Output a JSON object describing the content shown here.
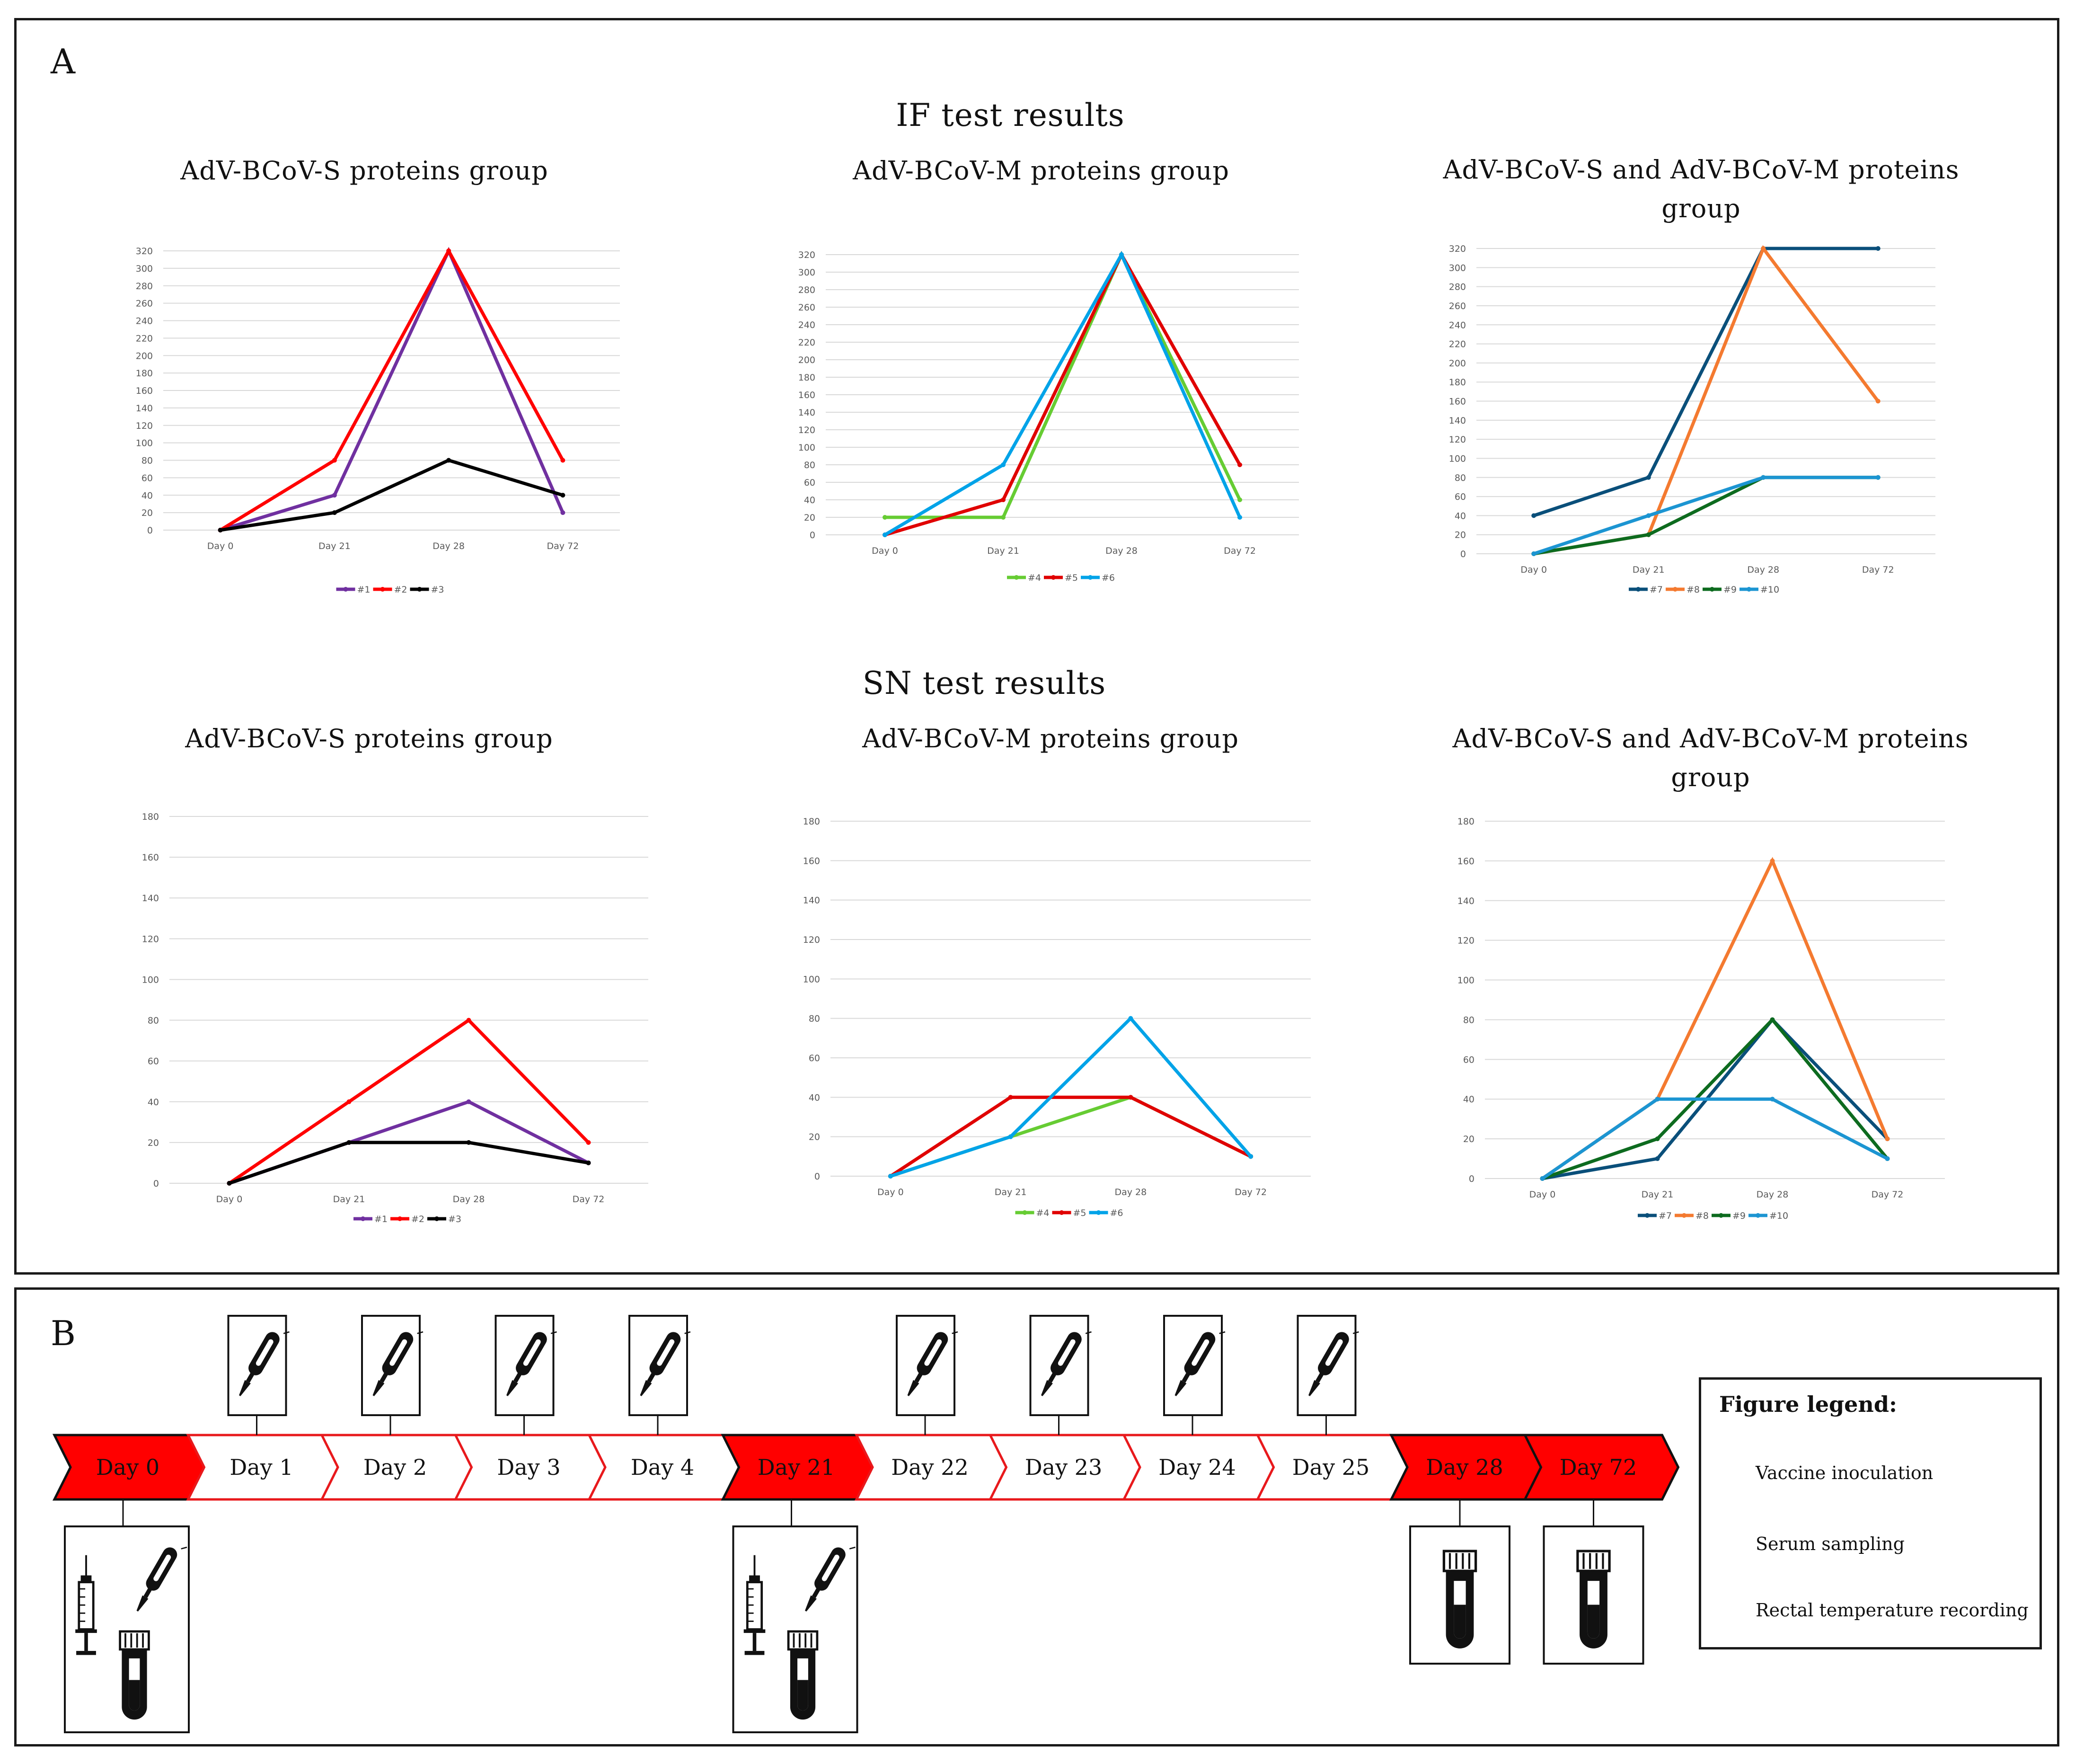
{
  "panel_a": {
    "letter": "A",
    "if_title": "IF test results",
    "sn_title": "SN test results"
  },
  "colors": {
    "#1": "#7030a0",
    "#2": "#ff0000",
    "#3": "#000000",
    "#4": "#66cc33",
    "#5": "#e00000",
    "#6": "#00a3e8",
    "#7": "#0a4f7a",
    "#8": "#f47a30",
    "#9": "#0d6b1f",
    "#10": "#1c95d2"
  },
  "chart_data": [
    {
      "type": "line",
      "id": "if_s",
      "title": "AdV-BCoV-S proteins group",
      "categories": [
        "Day 0",
        "Day 21",
        "Day 28",
        "Day 72"
      ],
      "ylim": [
        0,
        320
      ],
      "ytick_step": 20,
      "series": [
        {
          "name": "#1",
          "values": [
            0,
            40,
            320,
            20
          ]
        },
        {
          "name": "#2",
          "values": [
            0,
            80,
            320,
            80
          ]
        },
        {
          "name": "#3",
          "values": [
            0,
            20,
            80,
            40
          ]
        }
      ]
    },
    {
      "type": "line",
      "id": "if_m",
      "title": "AdV-BCoV-M proteins group",
      "categories": [
        "Day 0",
        "Day 21",
        "Day 28",
        "Day 72"
      ],
      "ylim": [
        0,
        320
      ],
      "ytick_step": 20,
      "series": [
        {
          "name": "#4",
          "values": [
            20,
            20,
            320,
            40
          ]
        },
        {
          "name": "#5",
          "values": [
            0,
            40,
            320,
            80
          ]
        },
        {
          "name": "#6",
          "values": [
            0,
            80,
            320,
            20
          ]
        }
      ]
    },
    {
      "type": "line",
      "id": "if_sm",
      "title": "AdV-BCoV-S and AdV-BCoV-M proteins group",
      "categories": [
        "Day 0",
        "Day 21",
        "Day 28",
        "Day 72"
      ],
      "ylim": [
        0,
        320
      ],
      "ytick_step": 20,
      "series": [
        {
          "name": "#7",
          "values": [
            40,
            80,
            320,
            320
          ]
        },
        {
          "name": "#8",
          "values": [
            0,
            20,
            320,
            160
          ]
        },
        {
          "name": "#9",
          "values": [
            0,
            20,
            80,
            80
          ]
        },
        {
          "name": "#10",
          "values": [
            0,
            40,
            80,
            80
          ]
        }
      ]
    },
    {
      "type": "line",
      "id": "sn_s",
      "title": "AdV-BCoV-S proteins group",
      "categories": [
        "Day 0",
        "Day 21",
        "Day 28",
        "Day 72"
      ],
      "ylim": [
        0,
        180
      ],
      "ytick_step": 20,
      "series": [
        {
          "name": "#1",
          "values": [
            0,
            20,
            40,
            10
          ]
        },
        {
          "name": "#2",
          "values": [
            0,
            40,
            80,
            20
          ]
        },
        {
          "name": "#3",
          "values": [
            0,
            20,
            20,
            10
          ]
        }
      ]
    },
    {
      "type": "line",
      "id": "sn_m",
      "title": "AdV-BCoV-M proteins group",
      "categories": [
        "Day 0",
        "Day 21",
        "Day 28",
        "Day 72"
      ],
      "ylim": [
        0,
        180
      ],
      "ytick_step": 20,
      "series": [
        {
          "name": "#4",
          "values": [
            0,
            20,
            40,
            10
          ]
        },
        {
          "name": "#5",
          "values": [
            0,
            40,
            40,
            10
          ]
        },
        {
          "name": "#6",
          "values": [
            0,
            20,
            80,
            10
          ]
        }
      ]
    },
    {
      "type": "line",
      "id": "sn_sm",
      "title": "AdV-BCoV-S and AdV-BCoV-M proteins group",
      "categories": [
        "Day 0",
        "Day 21",
        "Day 28",
        "Day 72"
      ],
      "ylim": [
        0,
        180
      ],
      "ytick_step": 20,
      "series": [
        {
          "name": "#7",
          "values": [
            0,
            10,
            80,
            20
          ]
        },
        {
          "name": "#8",
          "values": [
            0,
            40,
            160,
            20
          ]
        },
        {
          "name": "#9",
          "values": [
            0,
            20,
            80,
            10
          ]
        },
        {
          "name": "#10",
          "values": [
            0,
            40,
            40,
            10
          ]
        }
      ]
    }
  ],
  "panel_b": {
    "letter": "B",
    "days": [
      {
        "label": "Day 0",
        "highlight": true,
        "thermometer": false,
        "box_icons": [
          "syringe",
          "thermometer",
          "tube"
        ]
      },
      {
        "label": "Day 1",
        "highlight": false,
        "thermometer": true,
        "box_icons": []
      },
      {
        "label": "Day 2",
        "highlight": false,
        "thermometer": true,
        "box_icons": []
      },
      {
        "label": "Day 3",
        "highlight": false,
        "thermometer": true,
        "box_icons": []
      },
      {
        "label": "Day 4",
        "highlight": false,
        "thermometer": true,
        "box_icons": []
      },
      {
        "label": "Day 21",
        "highlight": true,
        "thermometer": false,
        "box_icons": [
          "syringe",
          "thermometer",
          "tube"
        ]
      },
      {
        "label": "Day 22",
        "highlight": false,
        "thermometer": true,
        "box_icons": []
      },
      {
        "label": "Day 23",
        "highlight": false,
        "thermometer": true,
        "box_icons": []
      },
      {
        "label": "Day 24",
        "highlight": false,
        "thermometer": true,
        "box_icons": []
      },
      {
        "label": "Day 25",
        "highlight": false,
        "thermometer": true,
        "box_icons": []
      },
      {
        "label": "Day 28",
        "highlight": true,
        "thermometer": false,
        "box_icons": [
          "tube"
        ]
      },
      {
        "label": "Day 72",
        "highlight": true,
        "thermometer": false,
        "box_icons": [
          "tube"
        ]
      }
    ],
    "legend": {
      "title": "Figure legend:",
      "items": [
        {
          "icon": "syringe",
          "label": "Vaccine inoculation"
        },
        {
          "icon": "tube",
          "label": "Serum sampling"
        },
        {
          "icon": "thermometer",
          "label": "Rectal temperature recording"
        }
      ]
    },
    "colors": {
      "highlight": "#ff0000",
      "outline": "#e8191c"
    }
  }
}
